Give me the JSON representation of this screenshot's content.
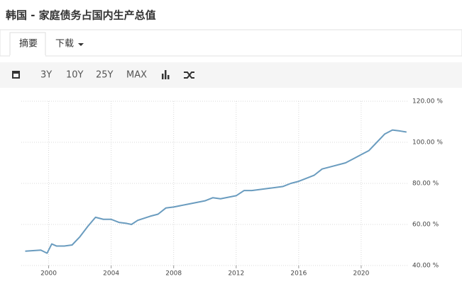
{
  "page": {
    "title": "韩国 - 家庭债务占国内生产总值",
    "tabs": [
      "摘要",
      "下载"
    ],
    "toolbar": [
      "3Y",
      "10Y",
      "25Y",
      "MAX"
    ]
  },
  "chart_data": {
    "type": "line",
    "color": "#6a9cbf",
    "grid": true,
    "x": [
      1998.5,
      1999.5,
      1999.9,
      2000.2,
      2000.5,
      2001,
      2001.5,
      2002,
      2002.5,
      2003,
      2003.5,
      2004,
      2004.5,
      2005,
      2005.3,
      2005.7,
      2006.5,
      2007,
      2007.5,
      2008,
      2009,
      2010,
      2010.5,
      2011,
      2012,
      2012.5,
      2013,
      2014,
      2015,
      2015.5,
      2016,
      2017,
      2017.5,
      2018,
      2019,
      2019.5,
      2020,
      2020.5,
      2021,
      2021.5,
      2022,
      2022.5,
      2022.9
    ],
    "values": [
      47,
      47.5,
      46,
      50.5,
      49.5,
      49.5,
      50,
      54,
      59,
      63.5,
      62.5,
      62.5,
      61,
      60.5,
      60,
      62,
      64,
      65,
      68,
      68.5,
      70,
      71.5,
      73,
      72.5,
      74,
      76.5,
      76.5,
      77.5,
      78.5,
      80,
      81,
      84,
      87,
      88,
      90,
      92,
      94,
      96,
      100,
      104,
      106,
      105.5,
      105
    ],
    "xlim": [
      1998.25,
      2023
    ],
    "xticks": [
      2000,
      2004,
      2008,
      2012,
      2016,
      2020
    ],
    "ylim": [
      40,
      120
    ],
    "yticks": [
      {
        "value": 40,
        "label": "40.00 %"
      },
      {
        "value": 60,
        "label": "60.00 %"
      },
      {
        "value": 80,
        "label": "80.00 %"
      },
      {
        "value": 100,
        "label": "100.00 %"
      },
      {
        "value": 120,
        "label": "120.00 %"
      }
    ]
  }
}
